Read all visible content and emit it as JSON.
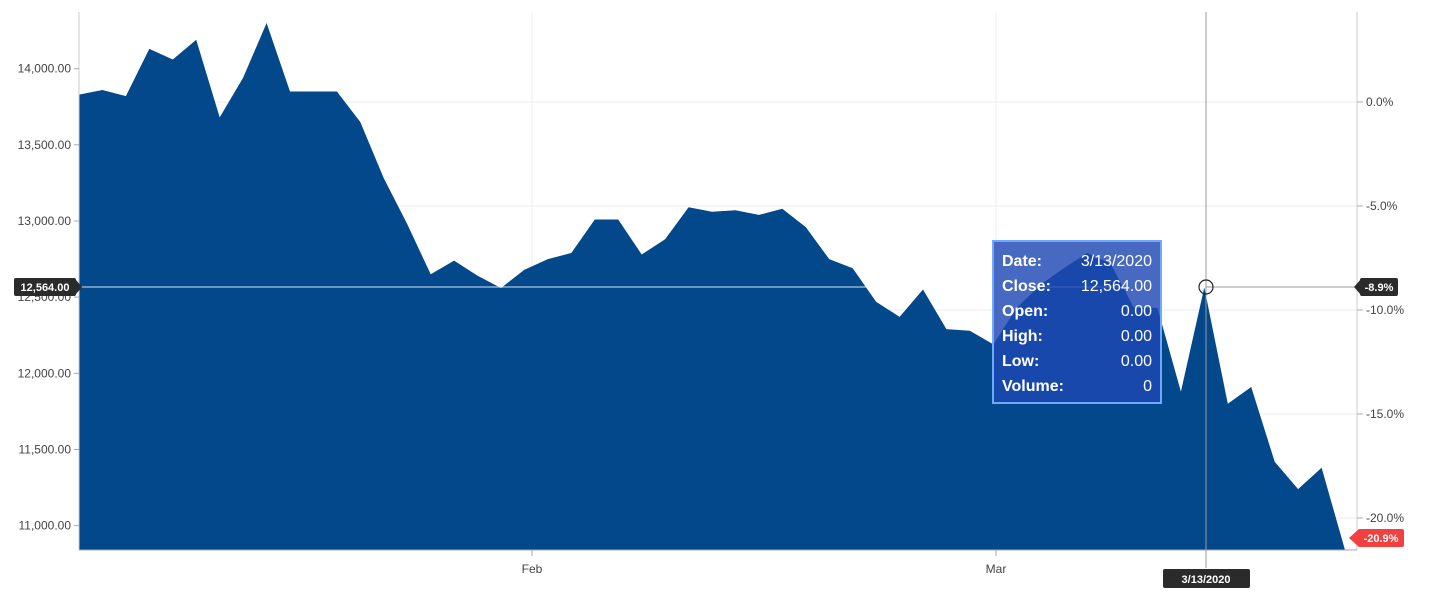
{
  "chart_data": {
    "type": "area",
    "title": "",
    "xlabel": "",
    "ylabel": "",
    "color": "#03488a",
    "x_ticks": [
      "Feb",
      "Mar"
    ],
    "y_ticks": [
      "11,000.00",
      "11,500.00",
      "12,000.00",
      "12,500.00",
      "13,000.00",
      "13,500.00",
      "14,000.00"
    ],
    "y_tick_values": [
      11000,
      11500,
      12000,
      12500,
      13000,
      13500,
      14000
    ],
    "y2_ticks": [
      "0.0%",
      "-5.0%",
      "-10.0%",
      "-15.0%",
      "-20.0%"
    ],
    "ylim": [
      10840,
      14372
    ],
    "grid": true,
    "values": [
      13830,
      13860,
      13820,
      14130,
      14060,
      14190,
      13680,
      13940,
      14300,
      13850,
      13850,
      13850,
      13650,
      13280,
      12980,
      12650,
      12740,
      12640,
      12560,
      12680,
      12750,
      12790,
      13010,
      13010,
      12780,
      12880,
      13090,
      13060,
      13070,
      13040,
      13080,
      12960,
      12750,
      12690,
      12470,
      12370,
      12550,
      12290,
      12280,
      12190,
      12430,
      12580,
      12690,
      12790,
      12720,
      12430,
      12430,
      11880,
      12564,
      11800,
      11910,
      11420,
      11240,
      11380,
      10840
    ],
    "crosshair_index": 48,
    "current_value_flag": "12,564.00",
    "current_change_flag": "-8.9%",
    "last_change_flag": "-20.9%",
    "crosshair_date_flag": "3/13/2020",
    "tooltip": [
      {
        "label": "Date:",
        "value": "3/13/2020"
      },
      {
        "label": "Close:",
        "value": "12,564.00"
      },
      {
        "label": "Open:",
        "value": "0.00"
      },
      {
        "label": "High:",
        "value": "0.00"
      },
      {
        "label": "Low:",
        "value": "0.00"
      },
      {
        "label": "Volume:",
        "value": "0"
      }
    ]
  }
}
